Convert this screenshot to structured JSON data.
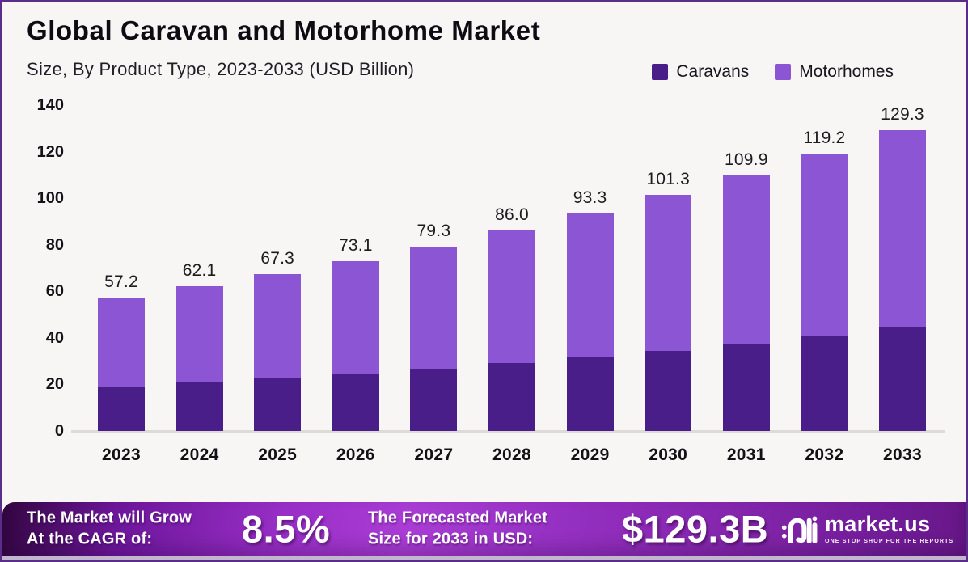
{
  "header": {
    "title": "Global Caravan and Motorhome Market",
    "subtitle": "Size, By Product Type, 2023-2033 (USD Billion)"
  },
  "legend": [
    {
      "label": "Caravans",
      "color": "#4a1e88"
    },
    {
      "label": "Motorhomes",
      "color": "#8c55d4"
    }
  ],
  "chart_data": {
    "type": "bar",
    "stacked": true,
    "title": "Global Caravan and Motorhome Market Size, By Product Type, 2023-2033 (USD Billion)",
    "categories": [
      "2023",
      "2024",
      "2025",
      "2026",
      "2027",
      "2028",
      "2029",
      "2030",
      "2031",
      "2032",
      "2033"
    ],
    "series": [
      {
        "name": "Caravans",
        "color": "#4a1e88",
        "values": [
          19.0,
          20.7,
          22.5,
          24.5,
          26.7,
          29.3,
          31.6,
          34.5,
          37.6,
          40.9,
          44.5
        ]
      },
      {
        "name": "Motorhomes",
        "color": "#8c55d4",
        "values": [
          38.2,
          41.4,
          44.8,
          48.6,
          52.6,
          56.7,
          61.7,
          66.8,
          72.3,
          78.3,
          84.8
        ]
      }
    ],
    "totals": [
      57.2,
      62.1,
      67.3,
      73.1,
      79.3,
      86.0,
      93.3,
      101.3,
      109.9,
      119.2,
      129.3
    ],
    "total_labels": [
      "57.2",
      "62.1",
      "67.3",
      "73.1",
      "79.3",
      "86.0",
      "93.3",
      "101.3",
      "109.9",
      "119.2",
      "129.3"
    ],
    "xlabel": "",
    "ylabel": "",
    "ylim": [
      0,
      140
    ],
    "yticks": [
      0,
      20,
      40,
      60,
      80,
      100,
      120,
      140
    ],
    "grid": false,
    "legend_position": "top-right"
  },
  "banner": {
    "cagr_label_line1": "The Market will Grow",
    "cagr_label_line2": "At the CAGR of:",
    "cagr_value": "8.5%",
    "forecast_label_line1": "The Forecasted Market",
    "forecast_label_line2": "Size for 2033 in USD:",
    "forecast_value": "$129.3B"
  },
  "logo": {
    "brand": "market.us",
    "tagline": "ONE STOP SHOP FOR THE REPORTS"
  }
}
